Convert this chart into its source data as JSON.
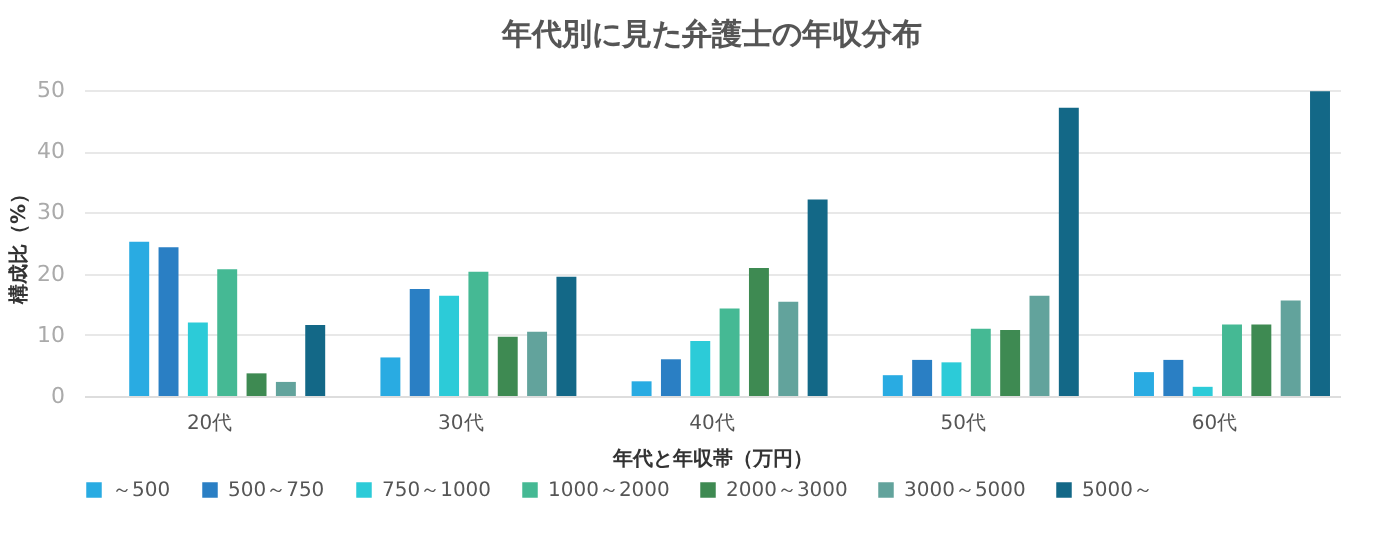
{
  "chart_data": {
    "type": "bar",
    "title": "年代別に見た弁護士の年収分布",
    "xlabel": "年代と年収帯（万円）",
    "ylabel": "構成比（%）",
    "categories": [
      "20代",
      "30代",
      "40代",
      "50代",
      "60代"
    ],
    "series": [
      {
        "name": "～500",
        "color": "#29abe2",
        "values": [
          25.2,
          6.3,
          2.4,
          3.4,
          3.9
        ]
      },
      {
        "name": "500～750",
        "color": "#2a7fc4",
        "values": [
          24.3,
          17.5,
          6.0,
          5.9,
          5.9
        ]
      },
      {
        "name": "750～1000",
        "color": "#2ccbd8",
        "values": [
          12.0,
          16.4,
          9.0,
          5.5,
          1.5
        ]
      },
      {
        "name": "1000～2000",
        "color": "#45b994",
        "values": [
          20.7,
          20.3,
          14.3,
          11.0,
          11.7
        ]
      },
      {
        "name": "2000～3000",
        "color": "#3e8a52",
        "values": [
          3.7,
          9.7,
          20.9,
          10.8,
          11.7
        ]
      },
      {
        "name": "3000～5000",
        "color": "#62a39c",
        "values": [
          2.3,
          10.5,
          15.4,
          16.4,
          15.6
        ]
      },
      {
        "name": "5000～",
        "color": "#136887",
        "values": [
          11.6,
          19.5,
          32.1,
          47.1,
          49.8
        ]
      }
    ],
    "ylim": [
      0,
      50
    ],
    "yticks": [
      0,
      10,
      20,
      30,
      40,
      50
    ],
    "grid": "y",
    "legend": "bottom"
  }
}
